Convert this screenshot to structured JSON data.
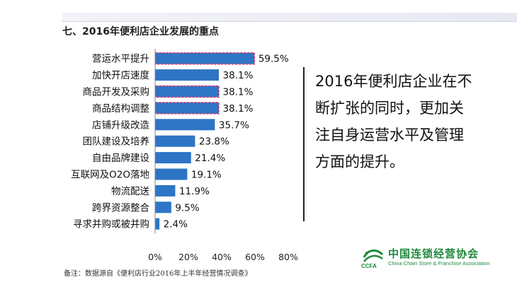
{
  "section_title": "七、2016年便利店企业发展的重点",
  "side_text": [
    "2016年便利店企业在不",
    "断扩张的同时，更加关",
    "注自身运营水平及管理",
    "方面的提升。"
  ],
  "note": "备注：数据源自《便利店行业2016年上半年经营情况调查》",
  "logo": {
    "cn": "中国连锁经营协会",
    "en": "China Chain Store & Franchise Association",
    "abbr": "CCFA"
  },
  "colors": {
    "bar": "#2e75c5",
    "highlight_border": "#e0336a",
    "logo_green": "#1f8a3d"
  },
  "chart_data": {
    "type": "bar",
    "orientation": "horizontal",
    "categories": [
      "营运水平提升",
      "加快开店速度",
      "商品开发及采购",
      "商品结构调整",
      "店铺升级改造",
      "团队建设及培养",
      "自由品牌建设",
      "互联网及O2O落地",
      "物流配送",
      "跨界资源整合",
      "寻求并购或被并购"
    ],
    "values": [
      59.5,
      38.1,
      38.1,
      38.1,
      35.7,
      23.8,
      21.4,
      19.1,
      11.9,
      9.5,
      2.4
    ],
    "value_labels": [
      "59.5%",
      "38.1%",
      "38.1%",
      "38.1%",
      "35.7%",
      "23.8%",
      "21.4%",
      "19.1%",
      "11.9%",
      "9.5%",
      "2.4%"
    ],
    "highlighted": [
      true,
      false,
      true,
      true,
      false,
      false,
      false,
      false,
      false,
      false,
      false
    ],
    "xlim": [
      0,
      80
    ],
    "x_ticks": [
      "0%",
      "20%",
      "40%",
      "60%",
      "80%"
    ],
    "grid": false
  }
}
